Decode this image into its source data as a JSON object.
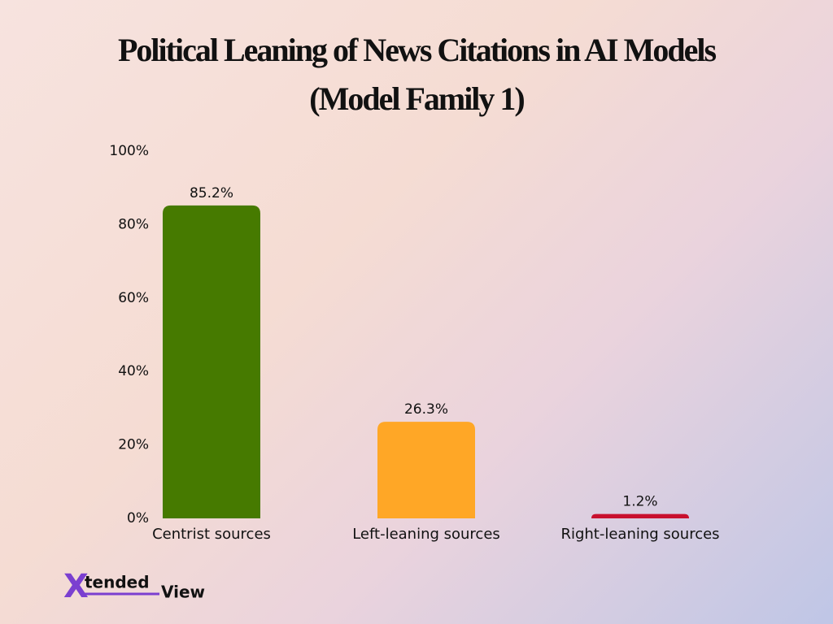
{
  "chart_data": {
    "type": "bar",
    "title": [
      "Political Leaning of News Citations in AI Models",
      "(Model Family 1)"
    ],
    "categories": [
      "Centrist sources",
      "Left-leaning sources",
      "Right-leaning sources"
    ],
    "values": [
      85.2,
      26.3,
      1.2
    ],
    "value_labels": [
      "85.2%",
      "26.3%",
      "1.2%"
    ],
    "colors": [
      "#467a00",
      "#ffa726",
      "#c8102e"
    ],
    "ylim": [
      0,
      100
    ],
    "yticks": [
      {
        "value": 0,
        "label": "0%"
      },
      {
        "value": 20,
        "label": "20%"
      },
      {
        "value": 40,
        "label": "40%"
      },
      {
        "value": 60,
        "label": "60%"
      },
      {
        "value": 80,
        "label": "80%"
      },
      {
        "value": 100,
        "label": "100%"
      }
    ],
    "grid": false
  },
  "logo": {
    "mark": "X",
    "text": "tended",
    "text2": "View"
  }
}
